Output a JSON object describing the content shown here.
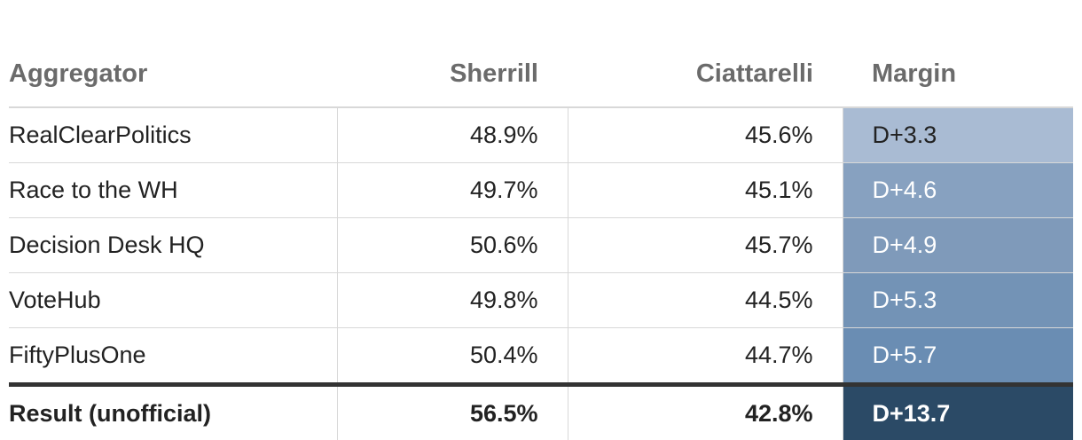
{
  "table": {
    "header": [
      "Aggregator",
      "Sherrill",
      "Ciattarelli",
      "Margin"
    ],
    "rows": [
      [
        "RealClearPolitics",
        "48.9%",
        "45.6%",
        "D+3.3"
      ],
      [
        "Race to the WH",
        "49.7%",
        "45.1%",
        "D+4.6"
      ],
      [
        "Decision Desk HQ",
        "50.6%",
        "45.7%",
        "D+4.9"
      ],
      [
        "VoteHub",
        "49.8%",
        "44.5%",
        "D+5.3"
      ],
      [
        "FiftyPlusOne",
        "50.4%",
        "44.7%",
        "D+5.7"
      ]
    ],
    "result": [
      "Result (unofficial)",
      "56.5%",
      "42.8%",
      "D+13.7"
    ]
  }
}
